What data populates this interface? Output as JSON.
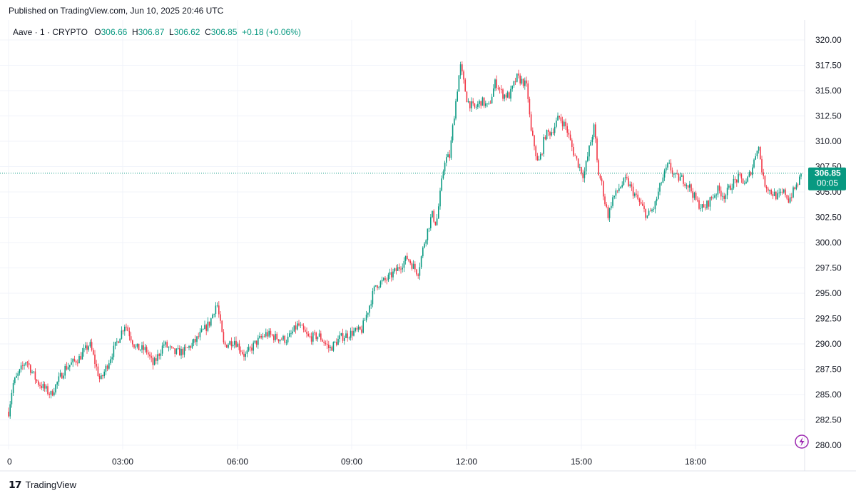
{
  "publish_note": "Published on TradingView.com, Jun 10, 2025 20:46 UTC",
  "legend": {
    "symbol": "Aave · 1 · CRYPTO",
    "o_label": "O",
    "o_value": "306.66",
    "h_label": "H",
    "h_value": "306.87",
    "l_label": "L",
    "l_value": "306.62",
    "c_label": "C",
    "c_value": "306.85",
    "change": "+0.18 (+0.06%)"
  },
  "price_tag": {
    "price": "306.85",
    "countdown": "00:05"
  },
  "footer": {
    "brand": "TradingView"
  },
  "colors": {
    "up": "#089981",
    "down": "#f23645",
    "grid": "#f0f3fa",
    "tag": "#089981",
    "accent_icon": "#9c27b0"
  },
  "chart_data": {
    "type": "candlestick",
    "title": "",
    "xlabel": "",
    "ylabel": "",
    "ylim": [
      279,
      321.5
    ],
    "y_ticks": [
      "280.00",
      "282.50",
      "285.00",
      "287.50",
      "290.00",
      "292.50",
      "295.00",
      "297.50",
      "300.00",
      "302.50",
      "305.00",
      "307.50",
      "310.00",
      "312.50",
      "315.00",
      "317.50",
      "320.00"
    ],
    "x_ticks": [
      "0",
      "03:00",
      "06:00",
      "09:00",
      "12:00",
      "15:00",
      "18:00"
    ],
    "last_price": 306.85,
    "grid": true,
    "path_points": [
      [
        0,
        283.3
      ],
      [
        6,
        286.0
      ],
      [
        25,
        288.4
      ],
      [
        40,
        286.3
      ],
      [
        60,
        285.0
      ],
      [
        80,
        287.6
      ],
      [
        100,
        288.6
      ],
      [
        115,
        290.0
      ],
      [
        130,
        286.3
      ],
      [
        145,
        288.8
      ],
      [
        165,
        292.0
      ],
      [
        180,
        289.6
      ],
      [
        195,
        289.4
      ],
      [
        205,
        287.9
      ],
      [
        220,
        290.0
      ],
      [
        235,
        289.1
      ],
      [
        250,
        289.3
      ],
      [
        265,
        290.3
      ],
      [
        285,
        292.1
      ],
      [
        295,
        294.1
      ],
      [
        305,
        289.8
      ],
      [
        320,
        290.4
      ],
      [
        335,
        288.8
      ],
      [
        350,
        290.1
      ],
      [
        365,
        291.0
      ],
      [
        380,
        290.6
      ],
      [
        395,
        290.4
      ],
      [
        410,
        291.9
      ],
      [
        425,
        290.6
      ],
      [
        440,
        290.8
      ],
      [
        455,
        289.5
      ],
      [
        470,
        290.6
      ],
      [
        490,
        291.2
      ],
      [
        500,
        291.3
      ],
      [
        510,
        293.5
      ],
      [
        520,
        295.8
      ],
      [
        535,
        296.3
      ],
      [
        550,
        297.3
      ],
      [
        565,
        298.5
      ],
      [
        580,
        297.0
      ],
      [
        590,
        300.3
      ],
      [
        600,
        302.8
      ],
      [
        606,
        301.8
      ],
      [
        612,
        305.0
      ],
      [
        618,
        308.2
      ],
      [
        625,
        308.5
      ],
      [
        630,
        311.8
      ],
      [
        640,
        317.5
      ],
      [
        650,
        314.0
      ],
      [
        660,
        313.2
      ],
      [
        670,
        314.0
      ],
      [
        680,
        313.3
      ],
      [
        690,
        315.9
      ],
      [
        700,
        314.6
      ],
      [
        710,
        314.5
      ],
      [
        720,
        316.3
      ],
      [
        730,
        315.8
      ],
      [
        735,
        315.2
      ],
      [
        740,
        311.0
      ],
      [
        745,
        309.6
      ],
      [
        750,
        307.7
      ],
      [
        755,
        308.8
      ],
      [
        760,
        310.6
      ],
      [
        770,
        311.0
      ],
      [
        780,
        312.4
      ],
      [
        790,
        311.4
      ],
      [
        800,
        309.0
      ],
      [
        810,
        307.3
      ],
      [
        815,
        306.6
      ],
      [
        825,
        310.0
      ],
      [
        830,
        311.5
      ],
      [
        835,
        307.0
      ],
      [
        840,
        306.0
      ],
      [
        845,
        304.0
      ],
      [
        850,
        302.6
      ],
      [
        855,
        304.3
      ],
      [
        860,
        304.7
      ],
      [
        865,
        305.4
      ],
      [
        875,
        306.2
      ],
      [
        885,
        305.0
      ],
      [
        895,
        303.8
      ],
      [
        905,
        302.6
      ],
      [
        915,
        303.5
      ],
      [
        925,
        306.0
      ],
      [
        935,
        307.7
      ],
      [
        945,
        306.4
      ],
      [
        955,
        306.3
      ],
      [
        965,
        305.5
      ],
      [
        975,
        304.0
      ],
      [
        985,
        303.3
      ],
      [
        995,
        304.3
      ],
      [
        1005,
        305.2
      ],
      [
        1015,
        304.6
      ],
      [
        1025,
        305.8
      ],
      [
        1035,
        306.4
      ],
      [
        1045,
        305.8
      ],
      [
        1055,
        307.7
      ],
      [
        1062,
        309.8
      ],
      [
        1070,
        306.0
      ],
      [
        1080,
        305.0
      ],
      [
        1090,
        304.5
      ],
      [
        1100,
        305.0
      ],
      [
        1105,
        304.2
      ],
      [
        1115,
        305.4
      ],
      [
        1125,
        306.85
      ]
    ]
  }
}
